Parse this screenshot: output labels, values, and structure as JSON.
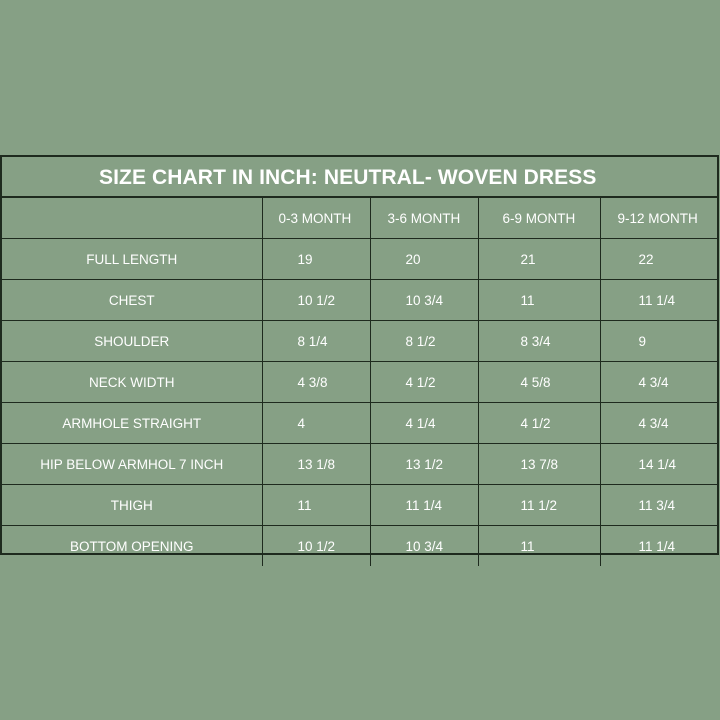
{
  "title": "SIZE CHART IN INCH: NEUTRAL- WOVEN DRESS",
  "columns": [
    "0-3 MONTH",
    "3-6 MONTH",
    "6-9 MONTH",
    "9-12 MONTH"
  ],
  "rows": [
    {
      "label": "FULL LENGTH",
      "values": [
        "19",
        "20",
        "21",
        "22"
      ]
    },
    {
      "label": "CHEST",
      "values": [
        "10 1/2",
        "10 3/4",
        "11",
        "11 1/4"
      ]
    },
    {
      "label": "SHOULDER",
      "values": [
        "8 1/4",
        "8 1/2",
        "8 3/4",
        "9"
      ]
    },
    {
      "label": "NECK WIDTH",
      "values": [
        "4 3/8",
        "4 1/2",
        "4 5/8",
        "4 3/4"
      ]
    },
    {
      "label": "ARMHOLE STRAIGHT",
      "values": [
        "4",
        "4 1/4",
        "4 1/2",
        "4 3/4"
      ]
    },
    {
      "label": "HIP BELOW ARMHOL 7 INCH",
      "values": [
        "13 1/8",
        "13 1/2",
        "13 7/8",
        "14 1/4"
      ]
    },
    {
      "label": "THIGH",
      "values": [
        "11",
        "11 1/4",
        "11 1/2",
        "11 3/4"
      ]
    },
    {
      "label": "BOTTOM OPENING",
      "values": [
        "10 1/2",
        "10 3/4",
        "11",
        "11 1/4"
      ]
    }
  ],
  "colors": {
    "background": "#86a085",
    "border": "#1e2a1e",
    "text": "#ffffff"
  }
}
